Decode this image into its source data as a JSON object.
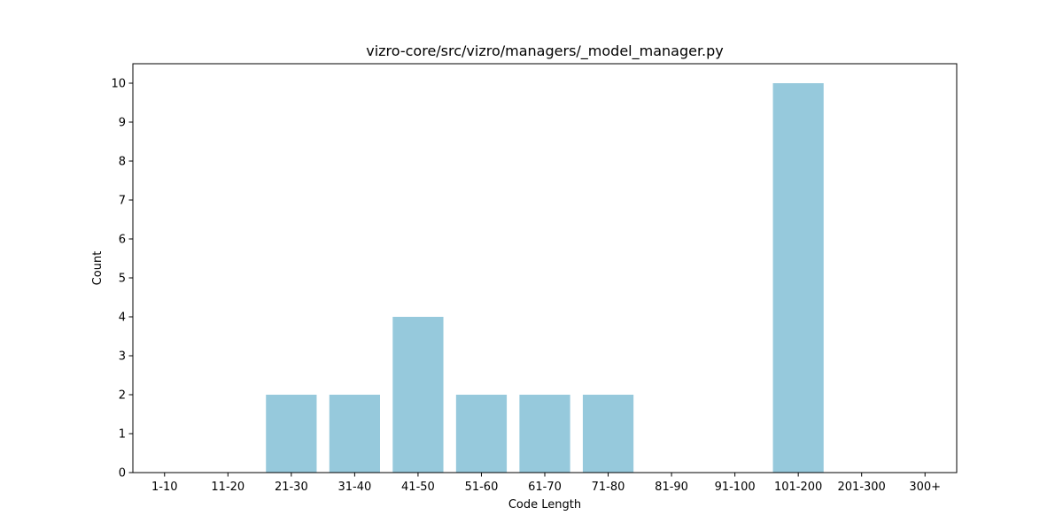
{
  "chart_data": {
    "type": "bar",
    "title": "vizro-core/src/vizro/managers/_model_manager.py",
    "xlabel": "Code Length",
    "ylabel": "Count",
    "categories": [
      "1-10",
      "11-20",
      "21-30",
      "31-40",
      "41-50",
      "51-60",
      "61-70",
      "71-80",
      "81-90",
      "91-100",
      "101-200",
      "201-300",
      "300+"
    ],
    "values": [
      0,
      0,
      2,
      2,
      4,
      2,
      2,
      2,
      0,
      0,
      10,
      0,
      0
    ],
    "ylim": [
      0,
      10.5
    ],
    "yticks": [
      0,
      1,
      2,
      3,
      4,
      5,
      6,
      7,
      8,
      9,
      10
    ],
    "grid": false,
    "bar_color": "#96c9dc"
  }
}
